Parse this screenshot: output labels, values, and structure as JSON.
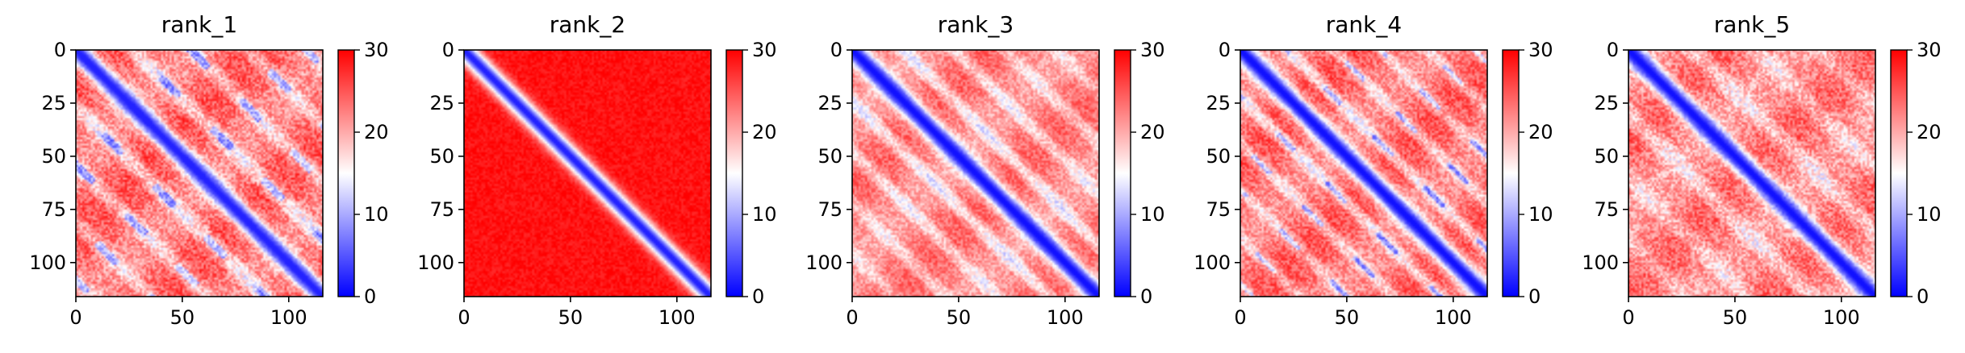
{
  "chart_data": [
    {
      "type": "heatmap",
      "title": "rank_1",
      "colormap": "bwr",
      "colormap_colors": [
        "#0000ff",
        "#ffffff",
        "#ff0000"
      ],
      "n": 116,
      "xlim": [
        0,
        116
      ],
      "ylim": [
        116,
        0
      ],
      "xticks": [
        "0",
        "50",
        "100"
      ],
      "yticks": [
        "0",
        "25",
        "50",
        "75",
        "100"
      ],
      "xtick_values": [
        0,
        50,
        100
      ],
      "ytick_values": [
        0,
        25,
        50,
        75,
        100
      ],
      "clim": [
        0,
        30
      ],
      "colorbar_ticks": [
        "0",
        "10",
        "20",
        "30"
      ],
      "colorbar_tick_values": [
        0,
        10,
        20,
        30
      ],
      "diagonal_value": 2,
      "background_value": 23,
      "periodic_bands": {
        "period": 27,
        "amplitude": 8,
        "noise": 4,
        "blue_patches": true
      }
    },
    {
      "type": "heatmap",
      "title": "rank_2",
      "colormap": "bwr",
      "colormap_colors": [
        "#0000ff",
        "#ffffff",
        "#ff0000"
      ],
      "n": 116,
      "xlim": [
        0,
        116
      ],
      "ylim": [
        116,
        0
      ],
      "xticks": [
        "0",
        "50",
        "100"
      ],
      "yticks": [
        "0",
        "25",
        "50",
        "75",
        "100"
      ],
      "xtick_values": [
        0,
        50,
        100
      ],
      "ytick_values": [
        0,
        25,
        50,
        75,
        100
      ],
      "clim": [
        0,
        30
      ],
      "colorbar_ticks": [
        "0",
        "10",
        "20",
        "30"
      ],
      "colorbar_tick_values": [
        0,
        10,
        20,
        30
      ],
      "diagonal_value": 2,
      "background_value": 29,
      "periodic_bands": {
        "period": 0,
        "amplitude": 0,
        "noise": 1.5,
        "blue_patches": false
      }
    },
    {
      "type": "heatmap",
      "title": "rank_3",
      "colormap": "bwr",
      "colormap_colors": [
        "#0000ff",
        "#ffffff",
        "#ff0000"
      ],
      "n": 116,
      "xlim": [
        0,
        116
      ],
      "ylim": [
        116,
        0
      ],
      "xticks": [
        "0",
        "50",
        "100"
      ],
      "yticks": [
        "0",
        "25",
        "50",
        "75",
        "100"
      ],
      "xtick_values": [
        0,
        50,
        100
      ],
      "ytick_values": [
        0,
        25,
        50,
        75,
        100
      ],
      "clim": [
        0,
        30
      ],
      "colorbar_ticks": [
        "0",
        "10",
        "20",
        "30"
      ],
      "colorbar_tick_values": [
        0,
        10,
        20,
        30
      ],
      "diagonal_value": 1,
      "background_value": 22,
      "periodic_bands": {
        "period": 24,
        "amplitude": 8,
        "noise": 3,
        "blue_patches": false
      }
    },
    {
      "type": "heatmap",
      "title": "rank_4",
      "colormap": "bwr",
      "colormap_colors": [
        "#0000ff",
        "#ffffff",
        "#ff0000"
      ],
      "n": 116,
      "xlim": [
        0,
        116
      ],
      "ylim": [
        116,
        0
      ],
      "xticks": [
        "0",
        "50",
        "100"
      ],
      "yticks": [
        "0",
        "25",
        "50",
        "75",
        "100"
      ],
      "xtick_values": [
        0,
        50,
        100
      ],
      "ytick_values": [
        0,
        25,
        50,
        75,
        100
      ],
      "clim": [
        0,
        30
      ],
      "colorbar_ticks": [
        "0",
        "10",
        "20",
        "30"
      ],
      "colorbar_tick_values": [
        0,
        10,
        20,
        30
      ],
      "diagonal_value": 1,
      "background_value": 23,
      "periodic_bands": {
        "period": 22,
        "amplitude": 8,
        "noise": 3.5,
        "blue_patches": true
      }
    },
    {
      "type": "heatmap",
      "title": "rank_5",
      "colormap": "bwr",
      "colormap_colors": [
        "#0000ff",
        "#ffffff",
        "#ff0000"
      ],
      "n": 116,
      "xlim": [
        0,
        116
      ],
      "ylim": [
        116,
        0
      ],
      "xticks": [
        "0",
        "50",
        "100"
      ],
      "yticks": [
        "0",
        "25",
        "50",
        "75",
        "100"
      ],
      "xtick_values": [
        0,
        50,
        100
      ],
      "ytick_values": [
        0,
        25,
        50,
        75,
        100
      ],
      "clim": [
        0,
        30
      ],
      "colorbar_ticks": [
        "0",
        "10",
        "20",
        "30"
      ],
      "colorbar_tick_values": [
        0,
        10,
        20,
        30
      ],
      "diagonal_value": 1,
      "background_value": 22,
      "periodic_bands": {
        "period": 30,
        "amplitude": 6,
        "noise": 4,
        "blue_patches": false
      }
    }
  ]
}
